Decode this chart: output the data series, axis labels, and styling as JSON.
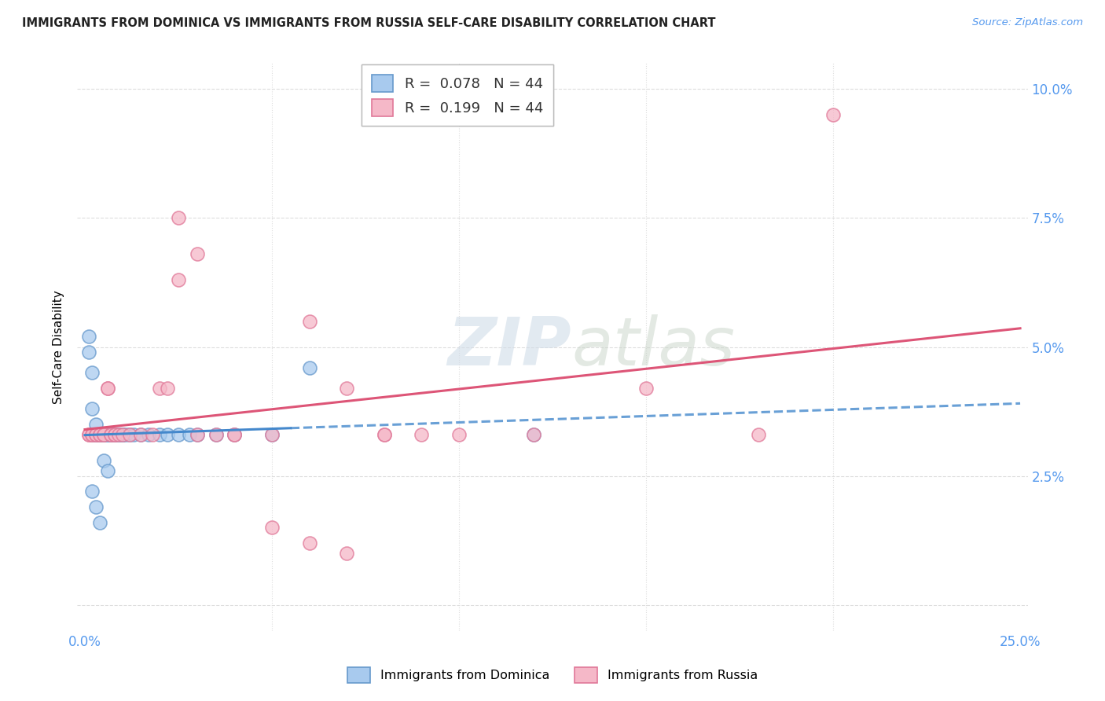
{
  "title": "IMMIGRANTS FROM DOMINICA VS IMMIGRANTS FROM RUSSIA SELF-CARE DISABILITY CORRELATION CHART",
  "source": "Source: ZipAtlas.com",
  "ylabel": "Self-Care Disability",
  "xlim": [
    -0.002,
    0.252
  ],
  "ylim": [
    -0.005,
    0.105
  ],
  "xtick_positions": [
    0.0,
    0.25
  ],
  "xtick_labels": [
    "0.0%",
    "25.0%"
  ],
  "ytick_positions": [
    0.025,
    0.05,
    0.075,
    0.1
  ],
  "ytick_labels": [
    "2.5%",
    "5.0%",
    "7.5%",
    "10.0%"
  ],
  "grid_yticks": [
    0.0,
    0.025,
    0.05,
    0.075,
    0.1
  ],
  "dominica_fill": "#A8CAEE",
  "dominica_edge": "#6699CC",
  "russia_fill": "#F5B8C8",
  "russia_edge": "#E07898",
  "dom_line_color": "#4488CC",
  "rus_line_color": "#DD5577",
  "legend_r1": "0.078",
  "legend_n1": "44",
  "legend_r2": "0.199",
  "legend_n2": "44",
  "watermark_zip": "ZIP",
  "watermark_atlas": "atlas",
  "right_axis_color": "#5599EE",
  "background_color": "#FFFFFF",
  "grid_color": "#DDDDDD",
  "dom_x": [
    0.001,
    0.001,
    0.002,
    0.002,
    0.002,
    0.003,
    0.003,
    0.003,
    0.004,
    0.004,
    0.004,
    0.005,
    0.005,
    0.005,
    0.006,
    0.006,
    0.007,
    0.007,
    0.008,
    0.008,
    0.009,
    0.009,
    0.01,
    0.01,
    0.011,
    0.012,
    0.013,
    0.015,
    0.017,
    0.02,
    0.022,
    0.025,
    0.028,
    0.03,
    0.035,
    0.04,
    0.05,
    0.06,
    0.002,
    0.003,
    0.004,
    0.005,
    0.12,
    0.006
  ],
  "dom_y": [
    0.052,
    0.049,
    0.045,
    0.038,
    0.033,
    0.035,
    0.033,
    0.033,
    0.033,
    0.033,
    0.033,
    0.033,
    0.033,
    0.033,
    0.033,
    0.033,
    0.033,
    0.033,
    0.033,
    0.033,
    0.033,
    0.033,
    0.033,
    0.033,
    0.033,
    0.033,
    0.033,
    0.033,
    0.033,
    0.033,
    0.033,
    0.033,
    0.033,
    0.033,
    0.033,
    0.033,
    0.033,
    0.046,
    0.022,
    0.019,
    0.016,
    0.028,
    0.033,
    0.026
  ],
  "rus_x": [
    0.001,
    0.001,
    0.002,
    0.002,
    0.003,
    0.003,
    0.004,
    0.004,
    0.005,
    0.005,
    0.006,
    0.006,
    0.007,
    0.007,
    0.008,
    0.008,
    0.009,
    0.01,
    0.012,
    0.015,
    0.018,
    0.02,
    0.022,
    0.025,
    0.03,
    0.035,
    0.04,
    0.05,
    0.06,
    0.07,
    0.08,
    0.1,
    0.12,
    0.15,
    0.18,
    0.2,
    0.025,
    0.03,
    0.04,
    0.05,
    0.06,
    0.07,
    0.08,
    0.09
  ],
  "rus_y": [
    0.033,
    0.033,
    0.033,
    0.033,
    0.033,
    0.033,
    0.033,
    0.033,
    0.033,
    0.033,
    0.042,
    0.042,
    0.033,
    0.033,
    0.033,
    0.033,
    0.033,
    0.033,
    0.033,
    0.033,
    0.033,
    0.042,
    0.042,
    0.063,
    0.068,
    0.033,
    0.033,
    0.033,
    0.055,
    0.042,
    0.033,
    0.033,
    0.033,
    0.042,
    0.033,
    0.095,
    0.075,
    0.033,
    0.033,
    0.015,
    0.012,
    0.01,
    0.033,
    0.033
  ]
}
